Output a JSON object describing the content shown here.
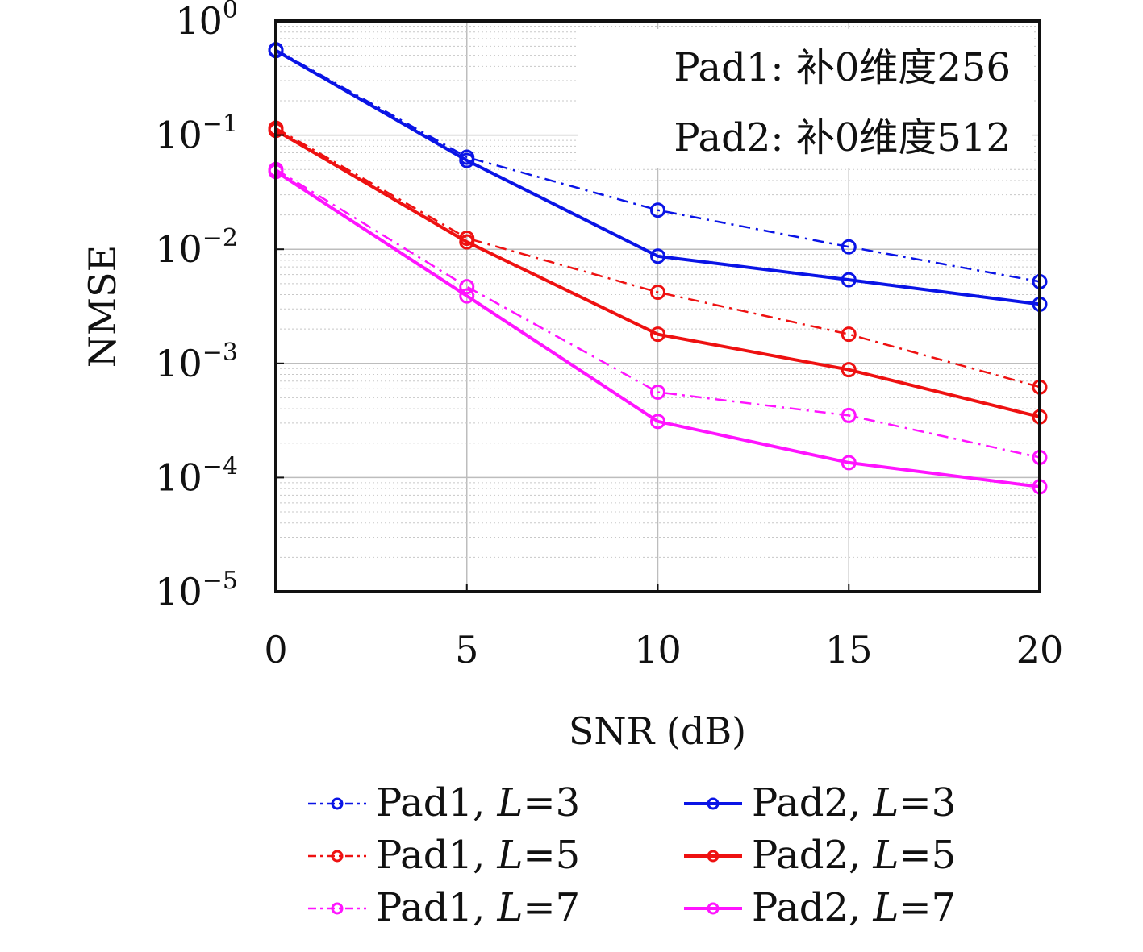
{
  "chart_data": {
    "type": "line",
    "xlabel": "SNR (dB)",
    "ylabel": "NMSE",
    "x": [
      0,
      5,
      10,
      15,
      20
    ],
    "xticks": [
      "0",
      "5",
      "10",
      "15",
      "20"
    ],
    "xlim": [
      0,
      20
    ],
    "ylim": [
      1e-05,
      1
    ],
    "yscale": "log",
    "ytick_exponents": [
      "0",
      "−1",
      "−2",
      "−3",
      "−4",
      "−5"
    ],
    "ytick_base": "10",
    "grid": true,
    "annotations": [
      "Pad1: 补0维度256",
      "Pad2: 补0维度512"
    ],
    "annotation_placement": "top-right",
    "legend_placement": "below",
    "series": [
      {
        "name": "Pad1, L=3",
        "name_prefix": "Pad1, ",
        "name_var": "L",
        "name_suffix": "=3",
        "color": "#0a14e6",
        "style": "dash-dot",
        "values": [
          0.56,
          0.064,
          0.022,
          0.0105,
          0.0052
        ]
      },
      {
        "name": "Pad2, L=3",
        "name_prefix": "Pad2, ",
        "name_var": "L",
        "name_suffix": "=3",
        "color": "#0a14e6",
        "style": "solid",
        "values": [
          0.55,
          0.06,
          0.0087,
          0.0054,
          0.0033
        ]
      },
      {
        "name": "Pad1, L=5",
        "name_prefix": "Pad1, ",
        "name_var": "L",
        "name_suffix": "=5",
        "color": "#ee1111",
        "style": "dash-dot",
        "values": [
          0.115,
          0.0125,
          0.0042,
          0.0018,
          0.00062
        ]
      },
      {
        "name": "Pad2, L=5",
        "name_prefix": "Pad2, ",
        "name_var": "L",
        "name_suffix": "=5",
        "color": "#ee1111",
        "style": "solid",
        "values": [
          0.11,
          0.0116,
          0.0018,
          0.00088,
          0.00034
        ]
      },
      {
        "name": "Pad1, L=7",
        "name_prefix": "Pad1, ",
        "name_var": "L",
        "name_suffix": "=7",
        "color": "#ff14ff",
        "style": "dash-dot",
        "values": [
          0.05,
          0.0047,
          0.00056,
          0.00035,
          0.00015
        ]
      },
      {
        "name": "Pad2, L=7",
        "name_prefix": "Pad2, ",
        "name_var": "L",
        "name_suffix": "=7",
        "color": "#ff14ff",
        "style": "solid",
        "values": [
          0.048,
          0.0039,
          0.00031,
          0.000135,
          8.3e-05
        ]
      }
    ]
  }
}
